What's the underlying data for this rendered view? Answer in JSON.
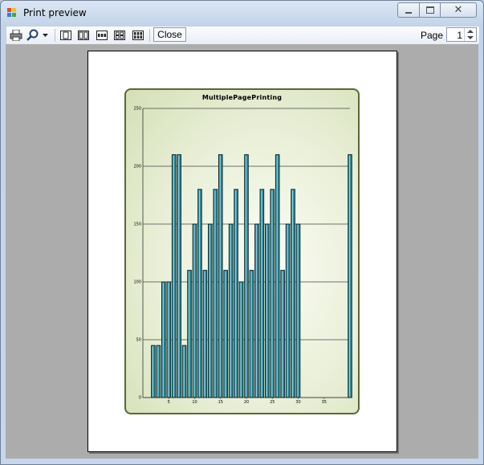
{
  "window": {
    "title": "Print preview",
    "controls": {
      "minimize_icon": "minimize-icon",
      "maximize_icon": "restore-icon",
      "close_icon": "close-x-icon"
    }
  },
  "toolbar": {
    "print_icon": "printer-icon",
    "zoom_icon": "magnifier-zoom-icon",
    "page_layouts": [
      "one-page-icon",
      "two-pages-icon",
      "three-pages-icon",
      "four-pages-icon",
      "six-pages-icon"
    ],
    "close_label": "Close",
    "page_label": "Page",
    "page_value": "1"
  },
  "chart_data": {
    "type": "bar",
    "title": "MultiplePagePrinting",
    "x": [
      2,
      3,
      4,
      5,
      6,
      7,
      8,
      9,
      10,
      11,
      12,
      13,
      14,
      15,
      16,
      17,
      18,
      19,
      20,
      21,
      22,
      23,
      24,
      25,
      26,
      27,
      28,
      29,
      30,
      40
    ],
    "values": [
      45,
      45,
      100,
      100,
      210,
      210,
      45,
      110,
      150,
      180,
      110,
      150,
      180,
      210,
      110,
      150,
      180,
      100,
      210,
      110,
      150,
      180,
      150,
      180,
      210,
      110,
      150,
      180,
      150,
      210
    ],
    "xticks": [
      5,
      10,
      15,
      20,
      25,
      30,
      35
    ],
    "yticks": [
      0,
      50,
      100,
      150,
      200,
      250
    ],
    "xlim": [
      0,
      40
    ],
    "ylim": [
      0,
      250
    ],
    "grid": "horizontal",
    "colors": {
      "bar": "#2f8a98",
      "frame": "#586936"
    }
  }
}
